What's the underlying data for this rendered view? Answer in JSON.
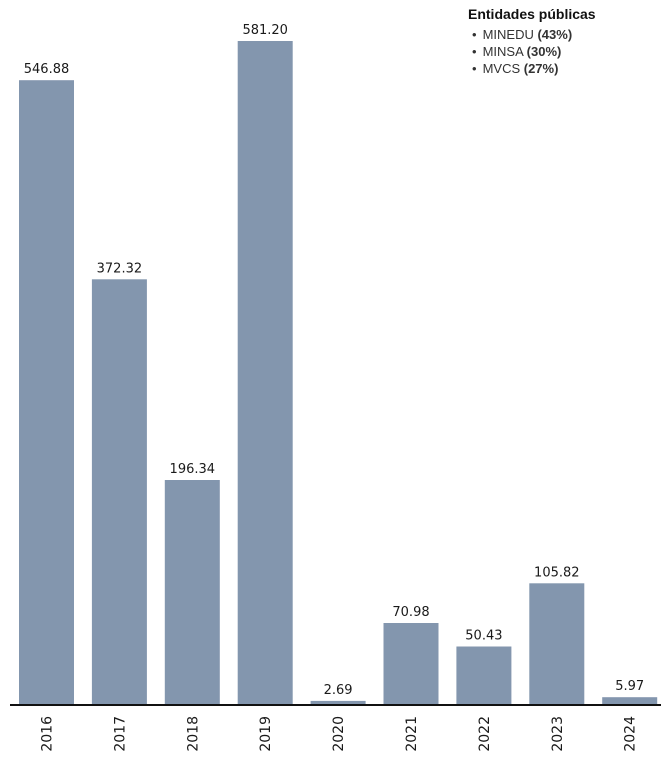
{
  "chart_data": {
    "type": "bar",
    "categories": [
      "2016",
      "2017",
      "2018",
      "2019",
      "2020",
      "2021",
      "2022",
      "2023",
      "2024"
    ],
    "values": [
      546.88,
      372.32,
      196.34,
      581.2,
      2.69,
      70.98,
      50.43,
      105.82,
      5.97
    ],
    "value_labels": [
      "546.88",
      "372.32",
      "196.34",
      "581.20",
      "2.69",
      "70.98",
      "50.43",
      "105.82",
      "5.97"
    ],
    "ylim": [
      0,
      581.2
    ],
    "bar_color": "#8396ae",
    "axis_color": "#111111",
    "grid": false,
    "legend_position": "top-right",
    "legend": {
      "title": "Entidades públicas",
      "items": [
        {
          "name": "MINEDU",
          "share": "(43%)"
        },
        {
          "name": "MINSA",
          "share": "(30%)"
        },
        {
          "name": "MVCS",
          "share": "(27%)"
        }
      ]
    }
  }
}
